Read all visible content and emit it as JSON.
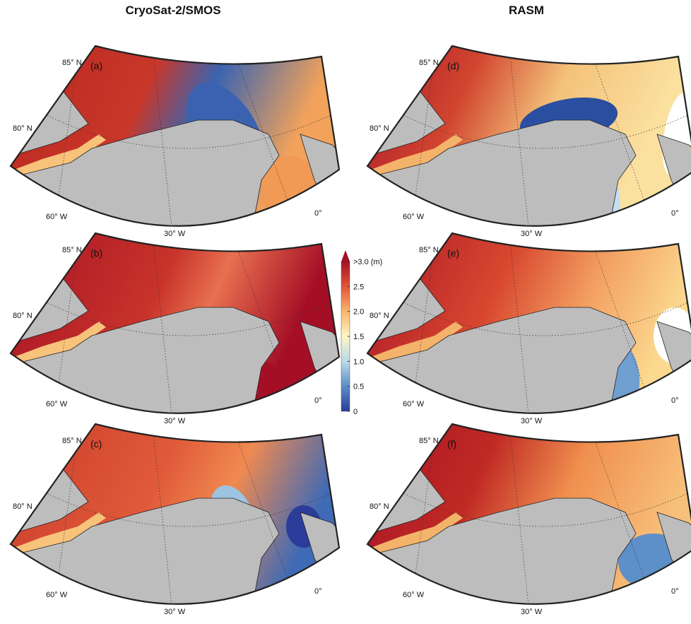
{
  "columns": [
    "CryoSat-2/SMOS",
    "RASM"
  ],
  "panels": [
    {
      "label": "(a)"
    },
    {
      "label": "(b)"
    },
    {
      "label": "(c)"
    },
    {
      "label": "(d)"
    },
    {
      "label": "(e)"
    },
    {
      "label": "(f)"
    }
  ],
  "graticule_labels": {
    "lat": [
      "85° N",
      "80° N"
    ],
    "lon": [
      "60° W",
      "30° W",
      "0°"
    ]
  },
  "colorbar": {
    "lim": [
      0,
      3
    ],
    "ticks": [
      0,
      0.5,
      {
        "value": 1,
        "label": "1.0"
      },
      1.5,
      {
        "value": 2,
        "label": "2.0"
      },
      2.5,
      {
        "value": 3,
        "label": ">3.0 (m)"
      }
    ]
  }
}
